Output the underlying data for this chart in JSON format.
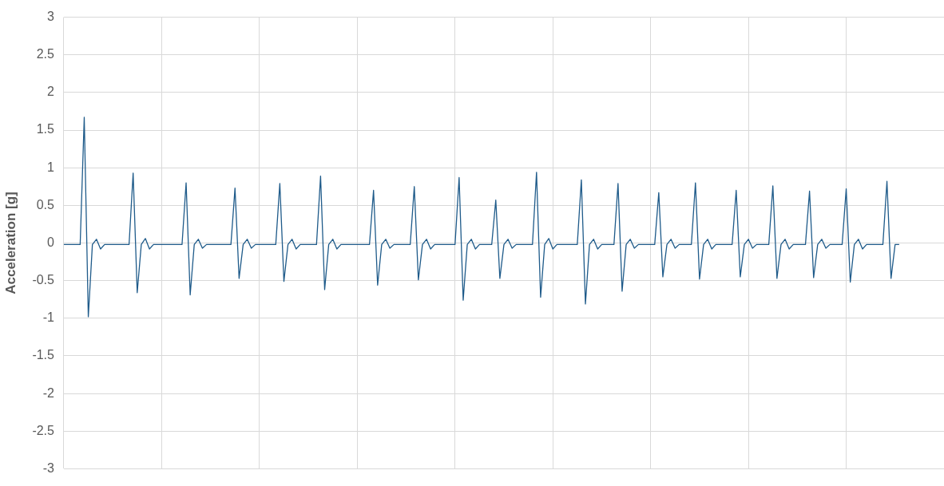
{
  "chart_data": {
    "type": "line",
    "ylabel": "Acceleration [g]",
    "categories": [
      null,
      null,
      null,
      null,
      null,
      null,
      null,
      null,
      null,
      null,
      null,
      null,
      null,
      null,
      null,
      null,
      null,
      null,
      null,
      null,
      null,
      null,
      null,
      null,
      null,
      null,
      null,
      null,
      null,
      null,
      null,
      null,
      null,
      null,
      null,
      null,
      null,
      null,
      null,
      null,
      null,
      null,
      null,
      null,
      null,
      null,
      null,
      null,
      null,
      null,
      null,
      null,
      null,
      null,
      null,
      null,
      null,
      null,
      null,
      null,
      null,
      null,
      null,
      null,
      null,
      null,
      null,
      null,
      null,
      null,
      null,
      null,
      null,
      null,
      null,
      null,
      null,
      null,
      null,
      null,
      null,
      null,
      null,
      null,
      null,
      null,
      null,
      null,
      null,
      null,
      null,
      null,
      null,
      null,
      null,
      null,
      null,
      null,
      null,
      null,
      null,
      null,
      null,
      null,
      null,
      null,
      null,
      null,
      null,
      null,
      null,
      null,
      null,
      null,
      null,
      null,
      null,
      null,
      null,
      null,
      null,
      null,
      null,
      null,
      null,
      null,
      null,
      null,
      null,
      null,
      null,
      null,
      null,
      null,
      null,
      null,
      null,
      null,
      null,
      null,
      null,
      null,
      null,
      null,
      null,
      null,
      null,
      null,
      null,
      null,
      null,
      null,
      null,
      null,
      null,
      null,
      null,
      null,
      null,
      null,
      null,
      null,
      null,
      null,
      null,
      null,
      null,
      null,
      null,
      null,
      null,
      null,
      null,
      null,
      null,
      null,
      null,
      null,
      null,
      null,
      null,
      null,
      null,
      null,
      null,
      null,
      null,
      null,
      null,
      null,
      null,
      null,
      null,
      null,
      null,
      null,
      null,
      null,
      null,
      null,
      null,
      null,
      null,
      null,
      null,
      null,
      null,
      null,
      null,
      null,
      null,
      null,
      null,
      null,
      null,
      null,
      null
    ],
    "series": [
      {
        "color": "#1f5b8a",
        "values": [
          -0.02,
          -0.02,
          -0.02,
          -0.02,
          -0.02,
          1.67,
          -0.98,
          -0.02,
          0.05,
          -0.08,
          -0.02,
          -0.02,
          -0.02,
          -0.02,
          -0.02,
          -0.02,
          -0.02,
          0.93,
          -0.66,
          -0.02,
          0.06,
          -0.08,
          -0.02,
          -0.02,
          -0.02,
          -0.02,
          -0.02,
          -0.02,
          -0.02,
          -0.02,
          0.8,
          -0.69,
          -0.02,
          0.05,
          -0.07,
          -0.02,
          -0.02,
          -0.02,
          -0.02,
          -0.02,
          -0.02,
          -0.02,
          0.73,
          -0.47,
          -0.02,
          0.05,
          -0.07,
          -0.02,
          -0.02,
          -0.02,
          -0.02,
          -0.02,
          -0.02,
          0.79,
          -0.51,
          -0.02,
          0.05,
          -0.08,
          -0.02,
          -0.02,
          -0.02,
          -0.02,
          -0.02,
          0.89,
          -0.62,
          -0.02,
          0.05,
          -0.08,
          -0.02,
          -0.02,
          -0.02,
          -0.02,
          -0.02,
          -0.02,
          -0.02,
          -0.02,
          0.7,
          -0.56,
          -0.02,
          0.05,
          -0.07,
          -0.02,
          -0.02,
          -0.02,
          -0.02,
          -0.02,
          0.75,
          -0.49,
          -0.02,
          0.05,
          -0.08,
          -0.02,
          -0.02,
          -0.02,
          -0.02,
          -0.02,
          -0.02,
          0.87,
          -0.76,
          -0.02,
          0.05,
          -0.08,
          -0.02,
          -0.02,
          -0.02,
          -0.02,
          0.57,
          -0.47,
          -0.02,
          0.05,
          -0.07,
          -0.02,
          -0.02,
          -0.02,
          -0.02,
          -0.02,
          0.94,
          -0.72,
          -0.02,
          0.06,
          -0.08,
          -0.02,
          -0.02,
          -0.02,
          -0.02,
          -0.02,
          -0.02,
          0.84,
          -0.81,
          -0.02,
          0.05,
          -0.08,
          -0.02,
          -0.02,
          -0.02,
          -0.02,
          0.79,
          -0.64,
          -0.02,
          0.05,
          -0.07,
          -0.02,
          -0.02,
          -0.02,
          -0.02,
          -0.02,
          0.67,
          -0.45,
          -0.02,
          0.05,
          -0.07,
          -0.02,
          -0.02,
          -0.02,
          -0.02,
          0.8,
          -0.48,
          -0.02,
          0.05,
          -0.08,
          -0.02,
          -0.02,
          -0.02,
          -0.02,
          -0.02,
          0.7,
          -0.45,
          -0.02,
          0.05,
          -0.07,
          -0.02,
          -0.02,
          -0.02,
          -0.02,
          0.76,
          -0.47,
          -0.02,
          0.05,
          -0.08,
          -0.02,
          -0.02,
          -0.02,
          -0.02,
          0.69,
          -0.46,
          -0.02,
          0.05,
          -0.07,
          -0.02,
          -0.02,
          -0.02,
          -0.02,
          0.72,
          -0.52,
          -0.02,
          0.05,
          -0.08,
          -0.02,
          -0.02,
          -0.02,
          -0.02,
          -0.02,
          0.82,
          -0.47,
          -0.02,
          -0.02,
          null,
          null,
          null,
          null,
          null,
          null,
          null,
          null,
          null,
          null,
          null
        ]
      }
    ],
    "ylim": [
      -3,
      3
    ],
    "yticks": [
      -3,
      -2.5,
      -2,
      -1.5,
      -1,
      -0.5,
      0,
      0.5,
      1,
      1.5,
      2,
      2.5,
      3
    ],
    "grid": true,
    "tick_labels": "y"
  }
}
